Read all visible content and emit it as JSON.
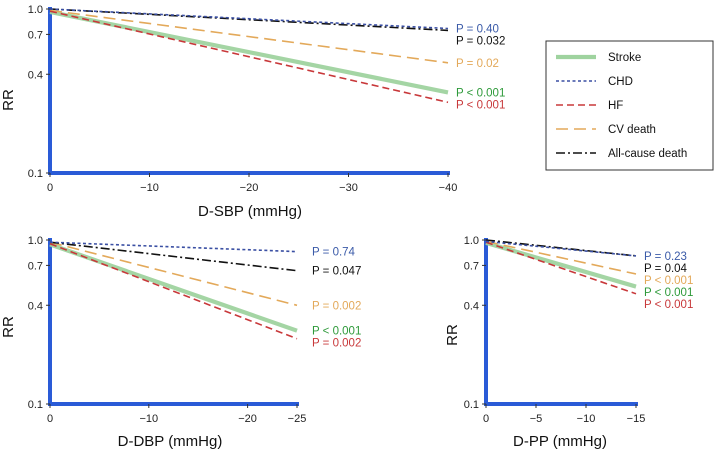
{
  "colors": {
    "stroke": "#9fd39f",
    "chd": "#3a4fa3",
    "hf": "#c8383a",
    "cv_death": "#e3a95a",
    "all_cause": "#111111",
    "axis": "#2a5bd7"
  },
  "legend": [
    {
      "key": "stroke",
      "label": "Stroke"
    },
    {
      "key": "chd",
      "label": "CHD"
    },
    {
      "key": "hf",
      "label": "HF"
    },
    {
      "key": "cv_death",
      "label": "CV death"
    },
    {
      "key": "all_cause",
      "label": "All-cause death"
    }
  ],
  "chart_data": [
    {
      "id": "sbp",
      "type": "line",
      "xlabel": "D-SBP (mmHg)",
      "ylabel": "RR",
      "xlim": [
        0,
        -40
      ],
      "x_ticks": [
        0,
        -10,
        -20,
        -30,
        -40
      ],
      "x_tick_labels": [
        "0",
        "−10",
        "−20",
        "−30",
        "−40"
      ],
      "y_scale": "log",
      "ylim": [
        0.1,
        1.0
      ],
      "y_ticks": [
        0.1,
        0.4,
        0.7,
        1.0
      ],
      "y_tick_labels": [
        "0.1",
        "0.4",
        "0.7",
        "1.0"
      ],
      "series": [
        {
          "key": "chd",
          "name": "CHD",
          "x": [
            0,
            -40
          ],
          "y": [
            1.0,
            0.76
          ],
          "p_label": "P = 0.40"
        },
        {
          "key": "all_cause",
          "name": "All-cause death",
          "x": [
            0,
            -40
          ],
          "y": [
            1.0,
            0.74
          ],
          "p_label": "P = 0.032"
        },
        {
          "key": "cv_death",
          "name": "CV death",
          "x": [
            0,
            -40
          ],
          "y": [
            0.98,
            0.47
          ],
          "p_label": "P = 0.02"
        },
        {
          "key": "stroke",
          "name": "Stroke",
          "x": [
            0,
            -40
          ],
          "y": [
            0.96,
            0.31
          ],
          "p_label": "P < 0.001"
        },
        {
          "key": "hf",
          "name": "HF",
          "x": [
            0,
            -40
          ],
          "y": [
            0.97,
            0.27
          ],
          "p_label": "P < 0.001"
        }
      ]
    },
    {
      "id": "dbp",
      "type": "line",
      "xlabel": "D-DBP (mmHg)",
      "ylabel": "RR",
      "xlim": [
        0,
        -25
      ],
      "x_ticks": [
        0,
        -10,
        -20,
        -25
      ],
      "x_tick_labels": [
        "0",
        "−10",
        "−20",
        "−25"
      ],
      "y_scale": "log",
      "ylim": [
        0.1,
        1.0
      ],
      "y_ticks": [
        0.1,
        0.4,
        0.7,
        1.0
      ],
      "y_tick_labels": [
        "0.1",
        "0.4",
        "0.7",
        "1.0"
      ],
      "series": [
        {
          "key": "chd",
          "name": "CHD",
          "x": [
            0,
            -25
          ],
          "y": [
            0.97,
            0.85
          ],
          "p_label": "P = 0.74"
        },
        {
          "key": "all_cause",
          "name": "All-cause death",
          "x": [
            0,
            -25
          ],
          "y": [
            0.97,
            0.65
          ],
          "p_label": "P = 0.047"
        },
        {
          "key": "cv_death",
          "name": "CV death",
          "x": [
            0,
            -25
          ],
          "y": [
            0.97,
            0.4
          ],
          "p_label": "P = 0.002"
        },
        {
          "key": "stroke",
          "name": "Stroke",
          "x": [
            0,
            -25
          ],
          "y": [
            0.94,
            0.28
          ],
          "p_label": "P < 0.001"
        },
        {
          "key": "hf",
          "name": "HF",
          "x": [
            0,
            -25
          ],
          "y": [
            0.95,
            0.25
          ],
          "p_label": "P = 0.002"
        }
      ]
    },
    {
      "id": "pp",
      "type": "line",
      "xlabel": "D-PP (mmHg)",
      "ylabel": "RR",
      "xlim": [
        0,
        -15
      ],
      "x_ticks": [
        0,
        -5,
        -10,
        -15
      ],
      "x_tick_labels": [
        "0",
        "−5",
        "−10",
        "−15"
      ],
      "y_scale": "log",
      "ylim": [
        0.1,
        1.0
      ],
      "y_ticks": [
        0.1,
        0.4,
        0.7,
        1.0
      ],
      "y_tick_labels": [
        "0.1",
        "0.4",
        "0.7",
        "1.0"
      ],
      "series": [
        {
          "key": "chd",
          "name": "CHD",
          "x": [
            0,
            -15
          ],
          "y": [
            0.98,
            0.8
          ],
          "p_label": "P = 0.23"
        },
        {
          "key": "all_cause",
          "name": "All-cause death",
          "x": [
            0,
            -15
          ],
          "y": [
            1.0,
            0.8
          ],
          "p_label": "P = 0.04"
        },
        {
          "key": "cv_death",
          "name": "CV death",
          "x": [
            0,
            -15
          ],
          "y": [
            0.98,
            0.62
          ],
          "p_label": "P < 0.001"
        },
        {
          "key": "stroke",
          "name": "Stroke",
          "x": [
            0,
            -15
          ],
          "y": [
            0.96,
            0.52
          ],
          "p_label": "P < 0.001"
        },
        {
          "key": "hf",
          "name": "HF",
          "x": [
            0,
            -15
          ],
          "y": [
            0.97,
            0.47
          ],
          "p_label": "P < 0.001"
        }
      ]
    }
  ]
}
